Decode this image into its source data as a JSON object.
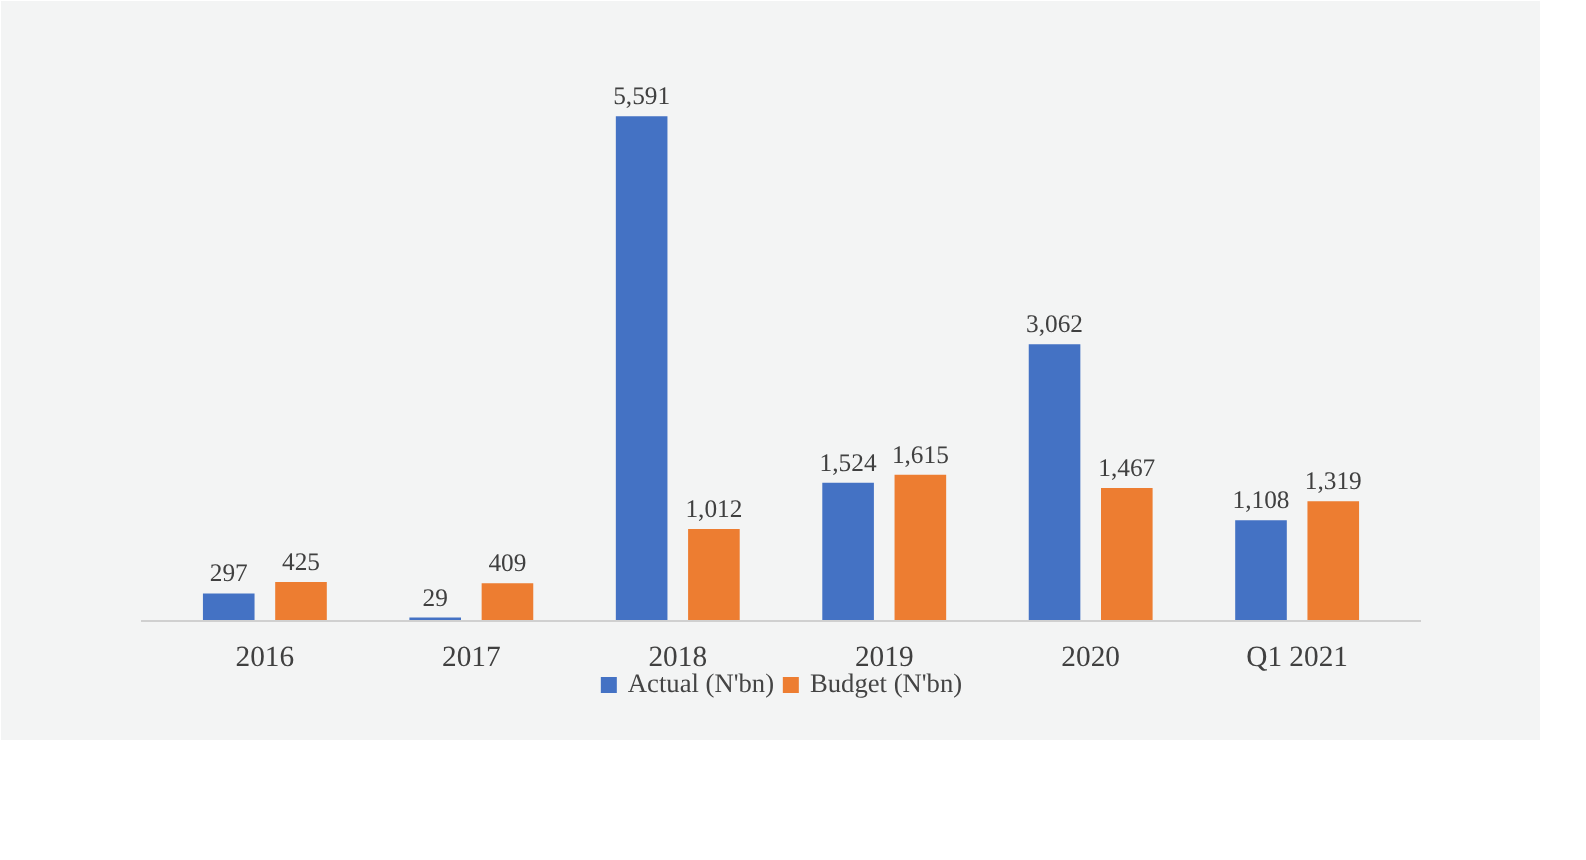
{
  "chart_data": {
    "type": "bar",
    "categories": [
      "2016",
      "2017",
      "2018",
      "2019",
      "2020",
      "Q1 2021"
    ],
    "series": [
      {
        "name": "Actual (N'bn)",
        "color": "#4472c4",
        "values": [
          297,
          29,
          5591,
          1524,
          3062,
          1108
        ],
        "value_labels": [
          "297",
          "29",
          "5,591",
          "1,524",
          "3,062",
          "1,108"
        ]
      },
      {
        "name": "Budget (N'bn)",
        "color": "#ed7d31",
        "values": [
          425,
          409,
          1012,
          1615,
          1467,
          1319
        ],
        "value_labels": [
          "425",
          "409",
          "1,012",
          "1,615",
          "1,467",
          "1,319"
        ]
      }
    ],
    "legend": "bottom"
  }
}
